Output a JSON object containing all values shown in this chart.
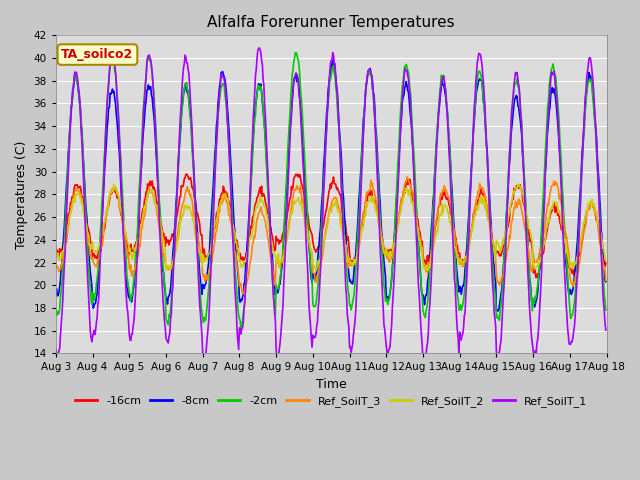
{
  "title": "Alfalfa Forerunner Temperatures",
  "xlabel": "Time",
  "ylabel": "Temperatures (C)",
  "ylim": [
    14,
    42
  ],
  "yticks": [
    14,
    16,
    18,
    20,
    22,
    24,
    26,
    28,
    30,
    32,
    34,
    36,
    38,
    40,
    42
  ],
  "bg_color": "#dcdcdc",
  "fig_color": "#c8c8c8",
  "annotation_text": "TA_soilco2",
  "annotation_color": "#cc0000",
  "annotation_bg": "#ffffcc",
  "annotation_edge": "#aa8800",
  "series_order": [
    "-16cm",
    "-8cm",
    "-2cm",
    "Ref_SoilT_3",
    "Ref_SoilT_2",
    "Ref_SoilT_1"
  ],
  "series": {
    "-16cm": {
      "color": "#ff0000",
      "linewidth": 1.2
    },
    "-8cm": {
      "color": "#0000ff",
      "linewidth": 1.2
    },
    "-2cm": {
      "color": "#00cc00",
      "linewidth": 1.2
    },
    "Ref_SoilT_3": {
      "color": "#ff8800",
      "linewidth": 1.2
    },
    "Ref_SoilT_2": {
      "color": "#cccc00",
      "linewidth": 1.2
    },
    "Ref_SoilT_1": {
      "color": "#aa00ff",
      "linewidth": 1.2
    }
  },
  "n_days": 15,
  "start_day": 3,
  "pts_per_day": 48,
  "params": {
    "-16cm": {
      "mean": 25.5,
      "amp": 3.0,
      "phase_hr": 14,
      "min_clip": 22,
      "max_clip": 31
    },
    "-8cm": {
      "mean": 28.5,
      "amp": 9.5,
      "phase_hr": 13,
      "min_clip": 14,
      "max_clip": 42
    },
    "-2cm": {
      "mean": 28.5,
      "amp": 10.5,
      "phase_hr": 13,
      "min_clip": 14,
      "max_clip": 42
    },
    "Ref_SoilT_3": {
      "mean": 25.0,
      "amp": 3.5,
      "phase_hr": 14,
      "min_clip": 21,
      "max_clip": 30
    },
    "Ref_SoilT_2": {
      "mean": 24.8,
      "amp": 2.8,
      "phase_hr": 14,
      "min_clip": 21,
      "max_clip": 29
    },
    "Ref_SoilT_1": {
      "mean": 27.0,
      "amp": 12.5,
      "phase_hr": 13,
      "min_clip": 14,
      "max_clip": 42
    }
  },
  "xtick_labels": [
    "Aug 3",
    "Aug 4",
    "Aug 5",
    "Aug 6",
    "Aug 7",
    "Aug 8",
    "Aug 9",
    "Aug 10",
    "Aug 11",
    "Aug 12",
    "Aug 13",
    "Aug 14",
    "Aug 15",
    "Aug 16",
    "Aug 17",
    "Aug 18"
  ]
}
